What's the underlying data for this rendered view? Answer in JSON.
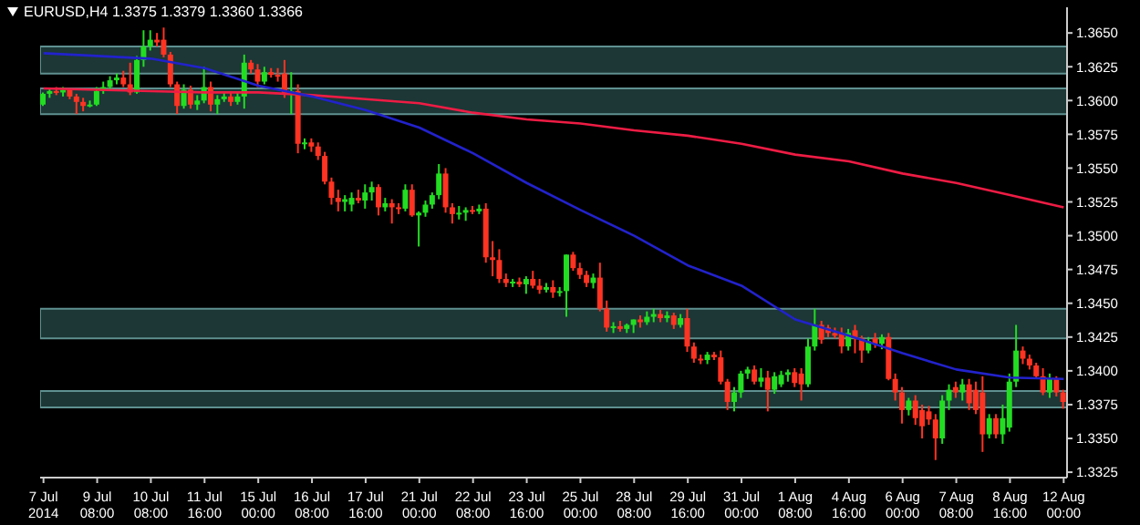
{
  "chart_data": {
    "type": "candlestick",
    "title": "EURUSD,H4 1.3375 1.3379 1.3360 1.3366",
    "categories": [
      "7 Jul 2014",
      null,
      null,
      null,
      null,
      null,
      null,
      null,
      "9 Jul 08:00",
      null,
      null,
      null,
      null,
      null,
      null,
      null,
      "10 Jul 08:00",
      null,
      null,
      null,
      null,
      null,
      null,
      null,
      "11 Jul 16:00",
      null,
      null,
      null,
      null,
      null,
      null,
      null,
      "15 Jul 00:00",
      null,
      null,
      null,
      null,
      null,
      null,
      null,
      "16 Jul 08:00",
      null,
      null,
      null,
      null,
      null,
      null,
      null,
      "17 Jul 16:00",
      null,
      null,
      null,
      null,
      null,
      null,
      null,
      "21 Jul 00:00",
      null,
      null,
      null,
      null,
      null,
      null,
      null,
      "22 Jul 08:00",
      null,
      null,
      null,
      null,
      null,
      null,
      null,
      "23 Jul 16:00",
      null,
      null,
      null,
      null,
      null,
      null,
      null,
      "25 Jul 00:00",
      null,
      null,
      null,
      null,
      null,
      null,
      null,
      "28 Jul 08:00",
      null,
      null,
      null,
      null,
      null,
      null,
      null,
      "29 Jul 16:00",
      null,
      null,
      null,
      null,
      null,
      null,
      null,
      "31 Jul 00:00",
      null,
      null,
      null,
      null,
      null,
      null,
      null,
      "1 Aug 08:00",
      null,
      null,
      null,
      null,
      null,
      null,
      null,
      "4 Aug 16:00",
      null,
      null,
      null,
      null,
      null,
      null,
      null,
      "6 Aug 00:00",
      null,
      null,
      null,
      null,
      null,
      null,
      null,
      "7 Aug 08:00",
      null,
      null,
      null,
      null,
      null,
      null,
      null,
      "8 Aug 16:00",
      null,
      null,
      null,
      null,
      null,
      null,
      null,
      "12 Aug 00:00"
    ],
    "ohlc": [
      [
        1.3597,
        1.3606,
        1.3596,
        1.3605
      ],
      [
        1.3605,
        1.3609,
        1.3602,
        1.3607
      ],
      [
        1.3607,
        1.361,
        1.3604,
        1.3606
      ],
      [
        1.3606,
        1.361,
        1.3603,
        1.3608
      ],
      [
        1.3608,
        1.3609,
        1.3601,
        1.3603
      ],
      [
        1.3603,
        1.3605,
        1.359,
        1.3599
      ],
      [
        1.3599,
        1.3602,
        1.3592,
        1.3596
      ],
      [
        1.3596,
        1.36,
        1.3595,
        1.3597
      ],
      [
        1.3597,
        1.361,
        1.3596,
        1.3607
      ],
      [
        1.3607,
        1.3614,
        1.3605,
        1.361
      ],
      [
        1.361,
        1.3618,
        1.3608,
        1.3615
      ],
      [
        1.3615,
        1.362,
        1.3612,
        1.3617
      ],
      [
        1.3617,
        1.3622,
        1.361,
        1.3612
      ],
      [
        1.3612,
        1.3628,
        1.3604,
        1.3606
      ],
      [
        1.3606,
        1.3633,
        1.3605,
        1.363
      ],
      [
        1.363,
        1.3652,
        1.3625,
        1.364
      ],
      [
        1.364,
        1.3652,
        1.3637,
        1.3645
      ],
      [
        1.3645,
        1.365,
        1.364,
        1.3643
      ],
      [
        1.3645,
        1.3654,
        1.3632,
        1.3634
      ],
      [
        1.3634,
        1.3636,
        1.361,
        1.3612
      ],
      [
        1.3612,
        1.3614,
        1.359,
        1.3596
      ],
      [
        1.3596,
        1.3612,
        1.3594,
        1.3608
      ],
      [
        1.3608,
        1.3611,
        1.3594,
        1.3597
      ],
      [
        1.3597,
        1.3604,
        1.3593,
        1.36
      ],
      [
        1.36,
        1.3625,
        1.3598,
        1.361
      ],
      [
        1.361,
        1.3614,
        1.3592,
        1.3597
      ],
      [
        1.3597,
        1.3604,
        1.359,
        1.3601
      ],
      [
        1.3601,
        1.3606,
        1.3599,
        1.3603
      ],
      [
        1.3603,
        1.3607,
        1.3596,
        1.3599
      ],
      [
        1.3599,
        1.3606,
        1.3597,
        1.3603
      ],
      [
        1.3603,
        1.3634,
        1.3594,
        1.3628
      ],
      [
        1.3628,
        1.363,
        1.362,
        1.3623
      ],
      [
        1.3623,
        1.3627,
        1.361,
        1.3614
      ],
      [
        1.3614,
        1.3625,
        1.3612,
        1.3621
      ],
      [
        1.3621,
        1.3624,
        1.3617,
        1.3619
      ],
      [
        1.3619,
        1.3624,
        1.3614,
        1.3618
      ],
      [
        1.362,
        1.363,
        1.3602,
        1.3605
      ],
      [
        1.3605,
        1.3621,
        1.359,
        1.3607
      ],
      [
        1.3607,
        1.3612,
        1.3561,
        1.3568
      ],
      [
        1.3568,
        1.3572,
        1.3564,
        1.3569
      ],
      [
        1.3569,
        1.3572,
        1.3562,
        1.3566
      ],
      [
        1.3566,
        1.3569,
        1.3556,
        1.3559
      ],
      [
        1.3559,
        1.3562,
        1.3538,
        1.354
      ],
      [
        1.354,
        1.3543,
        1.3523,
        1.3528
      ],
      [
        1.3528,
        1.3534,
        1.3518,
        1.3525
      ],
      [
        1.3525,
        1.353,
        1.3518,
        1.3527
      ],
      [
        1.3523,
        1.3532,
        1.3518,
        1.3528
      ],
      [
        1.3528,
        1.3534,
        1.3524,
        1.3526
      ],
      [
        1.3526,
        1.3538,
        1.352,
        1.3532
      ],
      [
        1.3532,
        1.354,
        1.3526,
        1.3536
      ],
      [
        1.3536,
        1.3538,
        1.3515,
        1.3521
      ],
      [
        1.3521,
        1.3528,
        1.3518,
        1.3524
      ],
      [
        1.3524,
        1.3527,
        1.3509,
        1.3521
      ],
      [
        1.3521,
        1.3524,
        1.3516,
        1.352
      ],
      [
        1.352,
        1.3538,
        1.3518,
        1.3534
      ],
      [
        1.3534,
        1.3538,
        1.3514,
        1.3515
      ],
      [
        1.3515,
        1.3518,
        1.3492,
        1.3517
      ],
      [
        1.3517,
        1.3526,
        1.3514,
        1.3523
      ],
      [
        1.3523,
        1.3532,
        1.352,
        1.353
      ],
      [
        1.353,
        1.3553,
        1.3527,
        1.3546
      ],
      [
        1.3546,
        1.355,
        1.3517,
        1.3521
      ],
      [
        1.3521,
        1.3524,
        1.3509,
        1.3516
      ],
      [
        1.3516,
        1.3522,
        1.3512,
        1.3517
      ],
      [
        1.3517,
        1.3521,
        1.3511,
        1.3519
      ],
      [
        1.3519,
        1.3522,
        1.3516,
        1.3518
      ],
      [
        1.3518,
        1.3523,
        1.3516,
        1.352
      ],
      [
        1.352,
        1.3524,
        1.348,
        1.3484
      ],
      [
        1.3484,
        1.3496,
        1.347,
        1.3482
      ],
      [
        1.3482,
        1.349,
        1.3465,
        1.3468
      ],
      [
        1.3468,
        1.3472,
        1.3462,
        1.3465
      ],
      [
        1.3465,
        1.3468,
        1.3462,
        1.3466
      ],
      [
        1.3466,
        1.3469,
        1.3462,
        1.3464
      ],
      [
        1.3464,
        1.347,
        1.3457,
        1.3468
      ],
      [
        1.3468,
        1.3474,
        1.3461,
        1.3463
      ],
      [
        1.3463,
        1.3468,
        1.3457,
        1.346
      ],
      [
        1.346,
        1.3465,
        1.3458,
        1.3462
      ],
      [
        1.3462,
        1.3467,
        1.3454,
        1.3458
      ],
      [
        1.3458,
        1.3462,
        1.3455,
        1.3459
      ],
      [
        1.3459,
        1.3486,
        1.344,
        1.3486
      ],
      [
        1.3486,
        1.3488,
        1.3474,
        1.3476
      ],
      [
        1.3476,
        1.348,
        1.3468,
        1.3471
      ],
      [
        1.3471,
        1.3474,
        1.3462,
        1.3465
      ],
      [
        1.3465,
        1.3472,
        1.3461,
        1.3469
      ],
      [
        1.3469,
        1.348,
        1.3444,
        1.3446
      ],
      [
        1.3446,
        1.3452,
        1.3429,
        1.3432
      ],
      [
        1.3432,
        1.3436,
        1.3428,
        1.3433
      ],
      [
        1.3433,
        1.3437,
        1.3429,
        1.3431
      ],
      [
        1.3431,
        1.3435,
        1.3428,
        1.3434
      ],
      [
        1.3434,
        1.3438,
        1.3428,
        1.3438
      ],
      [
        1.3438,
        1.3441,
        1.3432,
        1.3436
      ],
      [
        1.3436,
        1.3444,
        1.3434,
        1.344
      ],
      [
        1.344,
        1.3446,
        1.3436,
        1.3442
      ],
      [
        1.3442,
        1.3445,
        1.3436,
        1.3439
      ],
      [
        1.3439,
        1.3444,
        1.3436,
        1.3441
      ],
      [
        1.3441,
        1.3443,
        1.3431,
        1.3434
      ],
      [
        1.3434,
        1.3442,
        1.3432,
        1.3439
      ],
      [
        1.3439,
        1.3446,
        1.3414,
        1.3418
      ],
      [
        1.3418,
        1.3421,
        1.3406,
        1.3409
      ],
      [
        1.3409,
        1.3412,
        1.3405,
        1.3408
      ],
      [
        1.3408,
        1.3414,
        1.3405,
        1.3412
      ],
      [
        1.3412,
        1.3414,
        1.3408,
        1.341
      ],
      [
        1.341,
        1.3415,
        1.339,
        1.3392
      ],
      [
        1.3392,
        1.3394,
        1.3371,
        1.3377
      ],
      [
        1.3377,
        1.3388,
        1.337,
        1.3384
      ],
      [
        1.3384,
        1.34,
        1.338,
        1.3398
      ],
      [
        1.3398,
        1.3403,
        1.3394,
        1.3401
      ],
      [
        1.3401,
        1.3404,
        1.339,
        1.3392
      ],
      [
        1.3392,
        1.3402,
        1.3388,
        1.3395
      ],
      [
        1.3395,
        1.34,
        1.337,
        1.3386
      ],
      [
        1.3386,
        1.3399,
        1.3383,
        1.3396
      ],
      [
        1.339,
        1.34,
        1.3388,
        1.3397
      ],
      [
        1.3397,
        1.3401,
        1.3392,
        1.3399
      ],
      [
        1.3399,
        1.3402,
        1.3388,
        1.3391
      ],
      [
        1.3398,
        1.3402,
        1.3378,
        1.339
      ],
      [
        1.339,
        1.3424,
        1.3388,
        1.3418
      ],
      [
        1.3418,
        1.3446,
        1.3415,
        1.3434
      ],
      [
        1.3434,
        1.3437,
        1.342,
        1.3423
      ],
      [
        1.3432,
        1.3434,
        1.3425,
        1.3428
      ],
      [
        1.3428,
        1.3432,
        1.3424,
        1.3426
      ],
      [
        1.3428,
        1.3432,
        1.3413,
        1.3418
      ],
      [
        1.3418,
        1.3431,
        1.3415,
        1.3428
      ],
      [
        1.343,
        1.3434,
        1.3413,
        1.3424
      ],
      [
        1.3424,
        1.3426,
        1.3406,
        1.3415
      ],
      [
        1.3415,
        1.3425,
        1.3413,
        1.3422
      ],
      [
        1.3424,
        1.3428,
        1.3417,
        1.342
      ],
      [
        1.342,
        1.3427,
        1.3416,
        1.3425
      ],
      [
        1.3425,
        1.3428,
        1.3393,
        1.3394
      ],
      [
        1.3394,
        1.3398,
        1.3378,
        1.3384
      ],
      [
        1.3384,
        1.3388,
        1.3361,
        1.3371
      ],
      [
        1.3371,
        1.338,
        1.3367,
        1.3378
      ],
      [
        1.3378,
        1.3382,
        1.336,
        1.3365
      ],
      [
        1.3371,
        1.3375,
        1.335,
        1.3359
      ],
      [
        1.337,
        1.3374,
        1.336,
        1.3364
      ],
      [
        1.3364,
        1.3368,
        1.3334,
        1.335
      ],
      [
        1.335,
        1.3382,
        1.3346,
        1.3378
      ],
      [
        1.3378,
        1.339,
        1.3371,
        1.3386
      ],
      [
        1.3388,
        1.3392,
        1.338,
        1.3384
      ],
      [
        1.3384,
        1.3394,
        1.3378,
        1.339
      ],
      [
        1.339,
        1.3394,
        1.3371,
        1.3376
      ],
      [
        1.3386,
        1.3392,
        1.3368,
        1.3371
      ],
      [
        1.3384,
        1.3396,
        1.334,
        1.3353
      ],
      [
        1.3353,
        1.3368,
        1.335,
        1.3365
      ],
      [
        1.3365,
        1.3368,
        1.335,
        1.3353
      ],
      [
        1.3353,
        1.3375,
        1.3346,
        1.3365
      ],
      [
        1.3358,
        1.3398,
        1.3355,
        1.3392
      ],
      [
        1.3392,
        1.3434,
        1.3388,
        1.3415
      ],
      [
        1.3415,
        1.3418,
        1.3405,
        1.3409
      ],
      [
        1.3409,
        1.3412,
        1.3401,
        1.3404
      ],
      [
        1.3404,
        1.3406,
        1.3394,
        1.3396
      ],
      [
        1.3396,
        1.3402,
        1.3382,
        1.3384
      ],
      [
        1.3384,
        1.3398,
        1.338,
        1.3394
      ],
      [
        1.3394,
        1.3396,
        1.3381,
        1.3384
      ],
      [
        1.3384,
        1.3386,
        1.3372,
        1.3377
      ]
    ],
    "colors": [
      "#22dd22",
      "#22dd22",
      "#ff3322",
      "#22dd22",
      "#ff3322",
      "#ff3322",
      "#ff3322",
      "#22dd22",
      "#22dd22",
      "#22dd22",
      "#22dd22",
      "#22dd22",
      "#ff3322",
      "#ff3322",
      "#22dd22",
      "#22dd22",
      "#22dd22",
      "#ff3322",
      "#ff3322",
      "#ff3322",
      "#ff3322",
      "#22dd22",
      "#ff3322",
      "#22dd22",
      "#22dd22",
      "#ff3322",
      "#22dd22",
      "#22dd22",
      "#ff3322",
      "#22dd22",
      "#22dd22",
      "#ff3322",
      "#ff3322",
      "#22dd22",
      "#ff3322",
      "#ff3322",
      "#ff3322",
      "#22dd22",
      "#ff3322",
      "#22dd22",
      "#ff3322",
      "#ff3322",
      "#ff3322",
      "#ff3322",
      "#ff3322",
      "#22dd22",
      "#22dd22",
      "#ff3322",
      "#22dd22",
      "#22dd22",
      "#ff3322",
      "#22dd22",
      "#ff3322",
      "#ff3322",
      "#22dd22",
      "#ff3322",
      "#22dd22",
      "#22dd22",
      "#22dd22",
      "#22dd22",
      "#ff3322",
      "#ff3322",
      "#22dd22",
      "#22dd22",
      "#ff3322",
      "#22dd22",
      "#ff3322",
      "#ff3322",
      "#ff3322",
      "#ff3322",
      "#22dd22",
      "#ff3322",
      "#22dd22",
      "#ff3322",
      "#ff3322",
      "#22dd22",
      "#ff3322",
      "#22dd22",
      "#22dd22",
      "#ff3322",
      "#ff3322",
      "#ff3322",
      "#22dd22",
      "#ff3322",
      "#ff3322",
      "#22dd22",
      "#ff3322",
      "#22dd22",
      "#22dd22",
      "#ff3322",
      "#22dd22",
      "#22dd22",
      "#ff3322",
      "#22dd22",
      "#ff3322",
      "#22dd22",
      "#ff3322",
      "#ff3322",
      "#ff3322",
      "#22dd22",
      "#ff3322",
      "#ff3322",
      "#ff3322",
      "#22dd22",
      "#22dd22",
      "#22dd22",
      "#ff3322",
      "#22dd22",
      "#ff3322",
      "#22dd22",
      "#22dd22",
      "#22dd22",
      "#ff3322",
      "#ff3322",
      "#22dd22",
      "#22dd22",
      "#ff3322",
      "#ff3322",
      "#ff3322",
      "#ff3322",
      "#22dd22",
      "#ff3322",
      "#ff3322",
      "#22dd22",
      "#ff3322",
      "#22dd22",
      "#ff3322",
      "#ff3322",
      "#ff3322",
      "#22dd22",
      "#ff3322",
      "#ff3322",
      "#ff3322",
      "#ff3322",
      "#22dd22",
      "#22dd22",
      "#ff3322",
      "#22dd22",
      "#ff3322",
      "#ff3322",
      "#ff3322",
      "#22dd22",
      "#ff3322",
      "#22dd22",
      "#22dd22",
      "#22dd22",
      "#ff3322",
      "#ff3322",
      "#ff3322",
      "#ff3322",
      "#22dd22",
      "#ff3322",
      "#ff3322"
    ],
    "series": [
      {
        "type": "line",
        "color": "#ee1c44",
        "x": [
          "7 Jul 2014",
          "9 Jul 08:00",
          "10 Jul 08:00",
          "11 Jul 16:00",
          "15 Jul 00:00",
          "16 Jul 08:00",
          "17 Jul 16:00",
          "21 Jul 00:00",
          "22 Jul 08:00",
          "23 Jul 16:00",
          "25 Jul 00:00",
          "28 Jul 08:00",
          "29 Jul 16:00",
          "31 Jul 00:00",
          "1 Aug 08:00",
          "4 Aug 16:00",
          "6 Aug 00:00",
          "7 Aug 08:00",
          "8 Aug 16:00",
          "12 Aug 00:00"
        ],
        "values": [
          1.3609,
          1.3608,
          1.3607,
          1.3606,
          1.3606,
          1.3604,
          1.3601,
          1.3598,
          1.3591,
          1.3586,
          1.3583,
          1.3578,
          1.3574,
          1.3568,
          1.356,
          1.3555,
          1.3546,
          1.3539,
          1.353,
          1.3521
        ]
      },
      {
        "type": "line",
        "color": "#2222cc",
        "x": [
          "7 Jul 2014",
          "9 Jul 08:00",
          "10 Jul 08:00",
          "11 Jul 16:00",
          "15 Jul 00:00",
          "16 Jul 08:00",
          "17 Jul 16:00",
          "21 Jul 00:00",
          "22 Jul 08:00",
          "23 Jul 16:00",
          "25 Jul 00:00",
          "28 Jul 08:00",
          "29 Jul 16:00",
          "31 Jul 00:00",
          "1 Aug 08:00",
          "4 Aug 16:00",
          "6 Aug 00:00",
          "7 Aug 08:00",
          "8 Aug 16:00",
          "12 Aug 00:00"
        ],
        "values": [
          1.3635,
          1.3633,
          1.3631,
          1.3624,
          1.3611,
          1.3603,
          1.3593,
          1.358,
          1.3561,
          1.3539,
          1.3519,
          1.35,
          1.3478,
          1.3463,
          1.3438,
          1.3426,
          1.3413,
          1.3401,
          1.3395,
          1.3394
        ]
      }
    ],
    "bands": [
      {
        "axis": "y",
        "from": 1.362,
        "to": 1.364,
        "color": "#2f5c5a"
      },
      {
        "axis": "y",
        "from": 1.359,
        "to": 1.3609,
        "color": "#2f5c5a"
      },
      {
        "axis": "y",
        "from": 1.3424,
        "to": 1.3446,
        "color": "#2f5c5a"
      },
      {
        "axis": "y",
        "from": 1.3373,
        "to": 1.3385,
        "color": "#2f5c5a"
      }
    ],
    "ylim": [
      1.3321,
      1.3669
    ],
    "yticks": [
      {
        "value": 1.3325,
        "label": "1.3325"
      },
      {
        "value": 1.335,
        "label": "1.3350"
      },
      {
        "value": 1.3375,
        "label": "1.3375"
      },
      {
        "value": 1.34,
        "label": "1.3400"
      },
      {
        "value": 1.3425,
        "label": "1.3425"
      },
      {
        "value": 1.345,
        "label": "1.3450"
      },
      {
        "value": 1.3475,
        "label": "1.3475"
      },
      {
        "value": 1.35,
        "label": "1.3500"
      },
      {
        "value": 1.3525,
        "label": "1.3525"
      },
      {
        "value": 1.355,
        "label": "1.3550"
      },
      {
        "value": 1.3575,
        "label": "1.3575"
      },
      {
        "value": 1.36,
        "label": "1.3600"
      },
      {
        "value": 1.3625,
        "label": "1.3625"
      },
      {
        "value": 1.365,
        "label": "1.3650"
      }
    ],
    "grid": false,
    "marker": "none"
  }
}
